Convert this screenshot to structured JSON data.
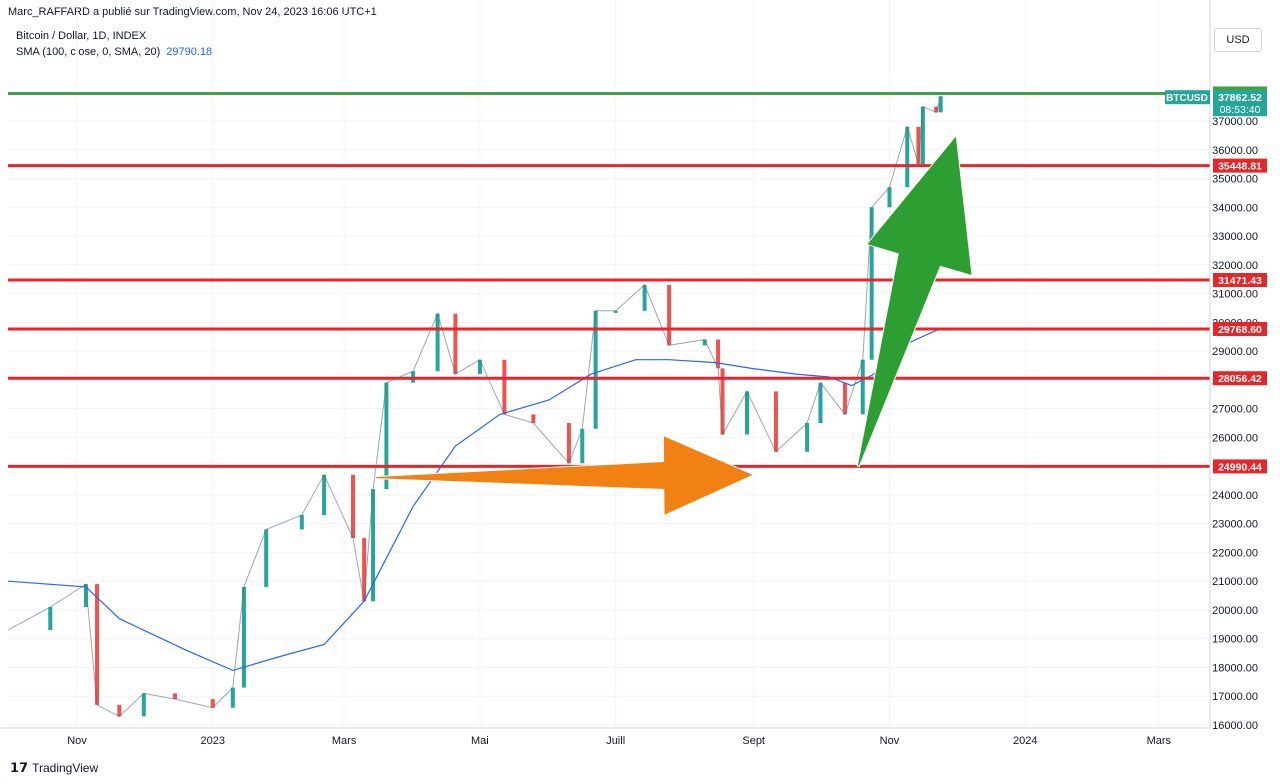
{
  "header": {
    "author_line": "Marc_RAFFARD a publié sur TradingView.com, Nov 24, 2023 16:06 UTC+1",
    "symbol": "Bitcoin / Dollar, 1D, INDEX",
    "sma_label": "SMA (100, close, 0, SMA, 20)",
    "sma_value": "29790.18",
    "currency": "USD"
  },
  "footer": {
    "brand": "TradingView"
  },
  "chart_data": {
    "type": "line",
    "title": "Bitcoin / Dollar, 1D, INDEX",
    "xlabel": "",
    "ylabel": "",
    "ylim": [
      16000,
      38000
    ],
    "y_ticks": [
      16000,
      17000,
      18000,
      19000,
      20000,
      21000,
      22000,
      23000,
      24000,
      25000,
      26000,
      27000,
      28000,
      29000,
      30000,
      31000,
      32000,
      33000,
      34000,
      35000,
      36000,
      37000
    ],
    "x_ticks": [
      {
        "label": "Nov",
        "date": "2022-11-01"
      },
      {
        "label": "2023",
        "date": "2023-01-01"
      },
      {
        "label": "Mars",
        "date": "2023-03-01"
      },
      {
        "label": "Mai",
        "date": "2023-05-01"
      },
      {
        "label": "Juill",
        "date": "2023-07-01"
      },
      {
        "label": "Sept",
        "date": "2023-09-01"
      },
      {
        "label": "Nov",
        "date": "2023-11-01"
      },
      {
        "label": "2024",
        "date": "2024-01-01"
      },
      {
        "label": "Mars",
        "date": "2024-03-01"
      }
    ],
    "price_series": {
      "dates": [
        "2022-10-01",
        "2022-10-20",
        "2022-11-05",
        "2022-11-10",
        "2022-11-20",
        "2022-12-01",
        "2022-12-15",
        "2023-01-01",
        "2023-01-10",
        "2023-01-15",
        "2023-01-25",
        "2023-02-10",
        "2023-02-20",
        "2023-03-05",
        "2023-03-10",
        "2023-03-14",
        "2023-03-20",
        "2023-04-01",
        "2023-04-12",
        "2023-04-20",
        "2023-05-01",
        "2023-05-12",
        "2023-05-25",
        "2023-06-10",
        "2023-06-16",
        "2023-06-22",
        "2023-07-01",
        "2023-07-14",
        "2023-07-25",
        "2023-08-10",
        "2023-08-16",
        "2023-08-18",
        "2023-08-29",
        "2023-09-11",
        "2023-09-25",
        "2023-10-01",
        "2023-10-12",
        "2023-10-20",
        "2023-10-24",
        "2023-11-01",
        "2023-11-09",
        "2023-11-14",
        "2023-11-16",
        "2023-11-22",
        "2023-11-24"
      ],
      "values": [
        19300,
        20100,
        20900,
        16700,
        16300,
        17100,
        16900,
        16600,
        17300,
        20800,
        22800,
        23300,
        24700,
        22500,
        20300,
        24200,
        27900,
        28300,
        30300,
        28200,
        28700,
        26800,
        26500,
        25100,
        26300,
        30400,
        30400,
        31300,
        29200,
        29400,
        28400,
        26100,
        27600,
        25500,
        26500,
        27900,
        26800,
        28700,
        34000,
        34700,
        36800,
        35500,
        37500,
        37300,
        37860
      ]
    },
    "sma_series": {
      "name": "SMA (100, close, 0, SMA, 20)",
      "dates": [
        "2022-10-01",
        "2022-11-05",
        "2022-11-20",
        "2022-12-20",
        "2023-01-10",
        "2023-02-01",
        "2023-02-20",
        "2023-03-10",
        "2023-04-01",
        "2023-04-20",
        "2023-05-10",
        "2023-06-01",
        "2023-06-20",
        "2023-07-10",
        "2023-07-25",
        "2023-08-15",
        "2023-08-31",
        "2023-09-20",
        "2023-10-05",
        "2023-10-15",
        "2023-10-25",
        "2023-11-10",
        "2023-11-24"
      ],
      "values": [
        21000,
        20800,
        19700,
        18600,
        17900,
        18400,
        18800,
        20300,
        23600,
        25700,
        26800,
        27300,
        28200,
        28700,
        28700,
        28600,
        28400,
        28200,
        28100,
        27800,
        28200,
        29300,
        29790
      ]
    },
    "levels": [
      {
        "value": 37957.02,
        "label": "37957.02",
        "color": "#43a047"
      },
      {
        "value": 35448.81,
        "label": "35448.81",
        "color": "#e5262b"
      },
      {
        "value": 31471.43,
        "label": "31471.43",
        "color": "#e5262b"
      },
      {
        "value": 29768.6,
        "label": "29768.60",
        "color": "#e5262b"
      },
      {
        "value": 28056.42,
        "label": "28056.42",
        "color": "#e5262b"
      },
      {
        "value": 24990.44,
        "label": "24990.44",
        "color": "#e5262b"
      }
    ],
    "last_price": {
      "symbol": "BTCUSD",
      "value": "37862.52",
      "countdown": "08:53:40",
      "color": "#26a69a"
    },
    "annotations": [
      {
        "type": "arrow",
        "color": "#f28114",
        "from": {
          "date": "2023-03-15",
          "value": 24600
        },
        "to": {
          "date": "2023-09-01",
          "value": 24700
        }
      },
      {
        "type": "arrow",
        "color": "#2d9e32",
        "from": {
          "date": "2023-10-18",
          "value": 25000
        },
        "to": {
          "date": "2023-12-01",
          "value": 36500
        }
      }
    ],
    "grid": true,
    "up_color": "#26a69a",
    "down_color": "#ef5350",
    "sma_color": "#2962ff"
  }
}
